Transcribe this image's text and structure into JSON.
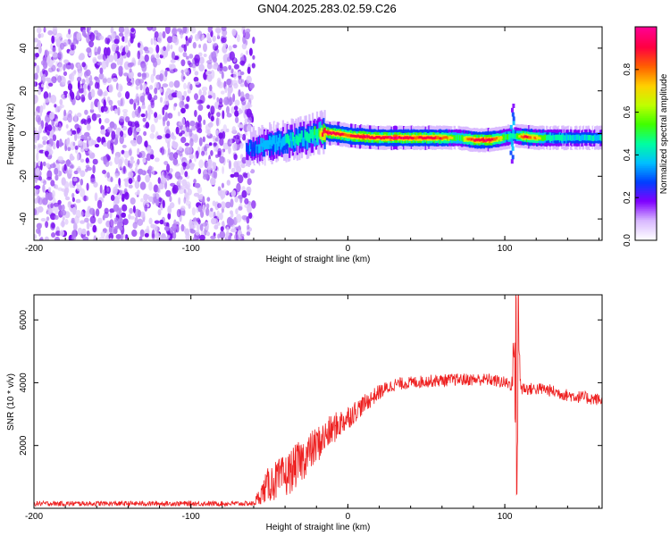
{
  "title": "GN04.2025.283.02.59.C26",
  "chart_data": [
    {
      "type": "heatmap",
      "name": "spectrogram",
      "xlabel": "Height of straight line (km)",
      "ylabel": "Frequency (Hz)",
      "xlim": [
        -200,
        162
      ],
      "ylim": [
        -50,
        50
      ],
      "xticks": [
        -200,
        -100,
        0,
        100
      ],
      "yticks": [
        -40,
        -20,
        0,
        20,
        40
      ],
      "noise_region_x": [
        -200,
        -60
      ],
      "ridge": [
        {
          "x": -65,
          "y": -8,
          "a": 0.35
        },
        {
          "x": -58,
          "y": -6,
          "a": 0.4
        },
        {
          "x": -50,
          "y": -5,
          "a": 0.45
        },
        {
          "x": -42,
          "y": -4,
          "a": 0.5
        },
        {
          "x": -35,
          "y": -3,
          "a": 0.5
        },
        {
          "x": -27,
          "y": -2,
          "a": 0.55
        },
        {
          "x": -20,
          "y": 0,
          "a": 0.6
        },
        {
          "x": -15,
          "y": 0.5,
          "a": 0.95
        },
        {
          "x": -8,
          "y": 0,
          "a": 0.9
        },
        {
          "x": 0,
          "y": -1,
          "a": 0.85
        },
        {
          "x": 10,
          "y": -1.5,
          "a": 0.95
        },
        {
          "x": 20,
          "y": -2,
          "a": 0.9
        },
        {
          "x": 30,
          "y": -2,
          "a": 0.95
        },
        {
          "x": 40,
          "y": -2,
          "a": 0.9
        },
        {
          "x": 50,
          "y": -2,
          "a": 0.9
        },
        {
          "x": 60,
          "y": -2,
          "a": 0.85
        },
        {
          "x": 70,
          "y": -2,
          "a": 0.6
        },
        {
          "x": 80,
          "y": -3,
          "a": 0.9
        },
        {
          "x": 90,
          "y": -3,
          "a": 0.95
        },
        {
          "x": 98,
          "y": -2,
          "a": 0.7
        },
        {
          "x": 105,
          "y": -1,
          "a": 0.5
        },
        {
          "x": 112,
          "y": -1.5,
          "a": 0.9
        },
        {
          "x": 120,
          "y": -2,
          "a": 0.75
        },
        {
          "x": 130,
          "y": -2,
          "a": 0.55
        },
        {
          "x": 145,
          "y": -2,
          "a": 0.5
        },
        {
          "x": 162,
          "y": -2,
          "a": 0.5
        }
      ],
      "colorbar": {
        "label": "Normalized spectral amplitude",
        "ticks": [
          "0.0",
          "0.2",
          "0.4",
          "0.6",
          "0.8"
        ],
        "tick_values": [
          0,
          0.2,
          0.4,
          0.6,
          0.8
        ],
        "range": [
          0,
          1
        ],
        "colors": [
          "#ffffff",
          "#d8b8ff",
          "#8000ff",
          "#0040ff",
          "#00c0ff",
          "#00ffa0",
          "#40ff00",
          "#c0ff00",
          "#ffd000",
          "#ff6000",
          "#ff0040",
          "#ff0090"
        ]
      }
    },
    {
      "type": "line",
      "name": "snr",
      "xlabel": "Height of straight line (km)",
      "ylabel": "SNR (10 * v/v)",
      "xlim": [
        -200,
        162
      ],
      "ylim": [
        0,
        6800
      ],
      "xticks": [
        -200,
        -100,
        0,
        100
      ],
      "yticks": [
        2000,
        4000,
        6000
      ],
      "color": "#ee2222",
      "envelope": [
        {
          "x": -200,
          "y": 150,
          "n": 80
        },
        {
          "x": -60,
          "y": 150,
          "n": 80
        },
        {
          "x": -50,
          "y": 800,
          "n": 600
        },
        {
          "x": -40,
          "y": 1000,
          "n": 700
        },
        {
          "x": -30,
          "y": 1500,
          "n": 700
        },
        {
          "x": -20,
          "y": 2000,
          "n": 600
        },
        {
          "x": -10,
          "y": 2500,
          "n": 500
        },
        {
          "x": 0,
          "y": 2900,
          "n": 400
        },
        {
          "x": 10,
          "y": 3300,
          "n": 300
        },
        {
          "x": 20,
          "y": 3700,
          "n": 250
        },
        {
          "x": 30,
          "y": 3950,
          "n": 200
        },
        {
          "x": 50,
          "y": 4050,
          "n": 200
        },
        {
          "x": 70,
          "y": 4100,
          "n": 200
        },
        {
          "x": 90,
          "y": 4100,
          "n": 200
        },
        {
          "x": 100,
          "y": 4000,
          "n": 200
        },
        {
          "x": 115,
          "y": 3800,
          "n": 200
        },
        {
          "x": 125,
          "y": 3800,
          "n": 200
        },
        {
          "x": 140,
          "y": 3600,
          "n": 200
        },
        {
          "x": 162,
          "y": 3450,
          "n": 200
        }
      ],
      "spike": [
        {
          "x": 104,
          "y": 4000
        },
        {
          "x": 106,
          "y": 5000
        },
        {
          "x": 106.5,
          "y": 3000
        },
        {
          "x": 107,
          "y": 6700
        },
        {
          "x": 107.5,
          "y": 600
        },
        {
          "x": 108,
          "y": 2000
        },
        {
          "x": 108.5,
          "y": 6800
        },
        {
          "x": 109,
          "y": 5000
        },
        {
          "x": 110,
          "y": 4000
        },
        {
          "x": 111,
          "y": 3800
        }
      ]
    }
  ]
}
